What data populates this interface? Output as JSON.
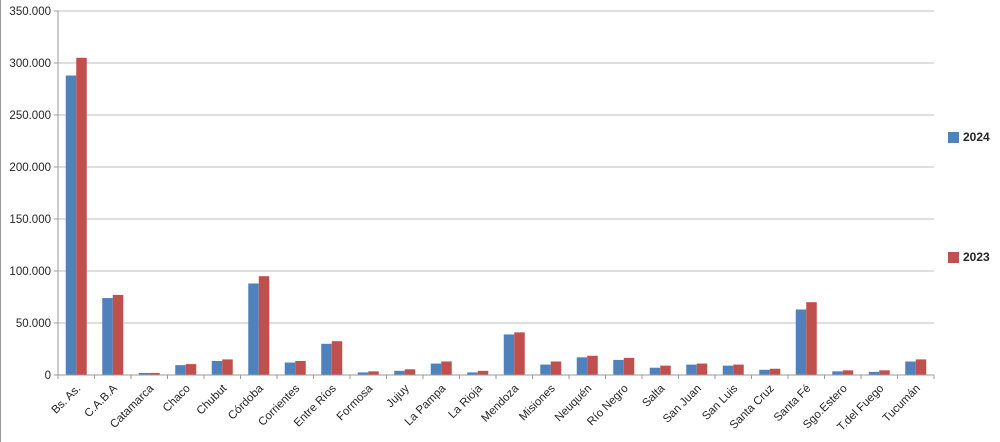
{
  "chart_data": {
    "type": "bar",
    "title": "",
    "categories": [
      "Bs. As.",
      "C.A.B.A",
      "Catamarca",
      "Chaco",
      "Chubut",
      "Córdoba",
      "Corrientes",
      "Entre Ríos",
      "Formosa",
      "Jujuy",
      "La Pampa",
      "La Rioja",
      "Mendoza",
      "Misiones",
      "Neuquén",
      "Río Negro",
      "Salta",
      "San Juan",
      "San Luis",
      "Santa Cruz",
      "Santa Fé",
      "Sgo.Estero",
      "T.del Fuego",
      "Tucumán"
    ],
    "series": [
      {
        "name": "2024",
        "color": "#4F81BD",
        "values": [
          288000,
          74000,
          2000,
          9500,
          13500,
          88000,
          12000,
          30000,
          2500,
          4000,
          11000,
          2500,
          39000,
          10000,
          17000,
          14500,
          7000,
          10000,
          9000,
          5000,
          63000,
          3500,
          3000,
          13000
        ]
      },
      {
        "name": "2023",
        "color": "#C0504D",
        "values": [
          305000,
          77000,
          2000,
          10500,
          15000,
          95000,
          13500,
          32500,
          3500,
          5500,
          13000,
          4000,
          41000,
          13000,
          18500,
          16500,
          9000,
          11000,
          10000,
          6000,
          70000,
          4500,
          4500,
          15000
        ]
      }
    ],
    "ylim": [
      0,
      350000
    ],
    "ytick_step": 50000,
    "ytick_labels": [
      "0",
      "50.000",
      "100.000",
      "150.000",
      "200.000",
      "250.000",
      "300.000",
      "350.000"
    ],
    "grid": true,
    "legend_position": "right"
  },
  "colors": {
    "gridline": "#bfbfbf",
    "axis": "#9a9a9a",
    "tick_text": "#262626",
    "series_2024": "#4F81BD",
    "series_2023": "#C0504D"
  }
}
